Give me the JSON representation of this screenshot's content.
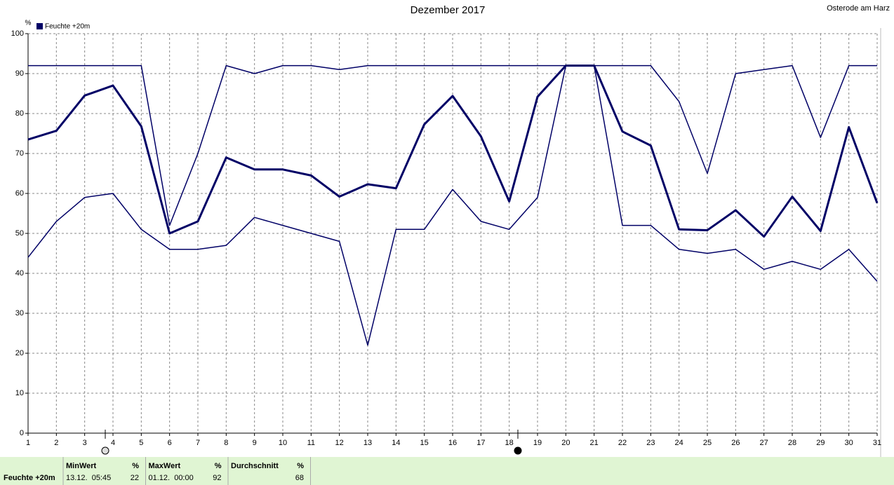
{
  "chart_data": {
    "type": "line",
    "title": "Dezember 2017",
    "location": "Osterode am Harz",
    "ylabel": "%",
    "x": [
      1,
      2,
      3,
      4,
      5,
      6,
      7,
      8,
      9,
      10,
      11,
      12,
      13,
      14,
      15,
      16,
      17,
      18,
      19,
      20,
      21,
      22,
      23,
      24,
      25,
      26,
      27,
      28,
      29,
      30,
      31
    ],
    "xlim": [
      1,
      31
    ],
    "xticks": [
      1,
      2,
      3,
      4,
      5,
      6,
      7,
      8,
      9,
      10,
      11,
      12,
      13,
      14,
      15,
      16,
      17,
      18,
      19,
      20,
      21,
      22,
      23,
      24,
      25,
      26,
      27,
      28,
      29,
      30,
      31
    ],
    "ylim": [
      0,
      100
    ],
    "yticks": [
      0,
      10,
      20,
      30,
      40,
      50,
      60,
      70,
      80,
      90,
      100
    ],
    "grid": true,
    "legend": "top-left",
    "series": [
      {
        "name": "Feuchte +20m",
        "color": "#000066",
        "line_width": 3,
        "values": [
          73.5,
          75.7,
          84.5,
          87,
          76.8,
          50,
          53,
          69,
          66,
          66,
          64.5,
          59.2,
          62.3,
          61.3,
          77.3,
          84.4,
          74.3,
          58,
          84.2,
          92,
          92,
          75.5,
          72,
          51,
          50.8,
          55.8,
          49.2,
          59.2,
          50.6,
          76.6,
          57.6
        ]
      },
      {
        "color": "#000066",
        "line_width": 1.5,
        "values": [
          92,
          92,
          92,
          92,
          92,
          52,
          70,
          92,
          90,
          92,
          92,
          91,
          92,
          92,
          92,
          92,
          92,
          92,
          92,
          92,
          92,
          92,
          92,
          83,
          65,
          90,
          91,
          92,
          74,
          92,
          92
        ]
      },
      {
        "color": "#000066",
        "line_width": 1.5,
        "values": [
          44,
          53,
          59,
          60,
          51,
          46,
          46,
          47,
          54,
          52,
          50,
          48,
          22,
          51,
          51,
          61,
          53,
          51,
          59,
          92,
          92,
          52,
          52,
          46,
          45,
          46,
          41,
          43,
          41,
          46,
          38
        ]
      }
    ]
  },
  "footer": {
    "series_label": "Feuchte +20m",
    "cells": [
      {
        "header": "MinWert",
        "unit": "%",
        "time": "13.12.  05:45",
        "value": 22
      },
      {
        "header": "MaxWert",
        "unit": "%",
        "time": "01.12.  00:00",
        "value": 92
      },
      {
        "header": "Durchschnitt",
        "unit": "%",
        "value": 68
      }
    ]
  }
}
